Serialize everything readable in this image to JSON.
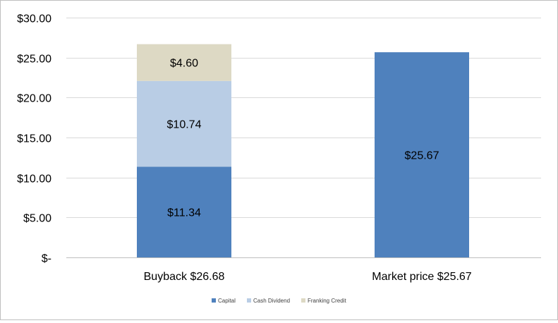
{
  "chart_data": {
    "type": "bar",
    "stacked": true,
    "categories": [
      "Buyback $26.68",
      "Market price $25.67"
    ],
    "series": [
      {
        "name": "Capital",
        "values": [
          11.34,
          25.67
        ],
        "labels": [
          "$11.34",
          "$25.67"
        ],
        "color": "#4f81bd"
      },
      {
        "name": "Cash Dividend",
        "values": [
          10.74,
          0
        ],
        "labels": [
          "$10.74",
          ""
        ],
        "color": "#b9cde5"
      },
      {
        "name": "Franking Credit",
        "values": [
          4.6,
          0
        ],
        "labels": [
          "$4.60",
          ""
        ],
        "color": "#ddd9c4"
      }
    ],
    "y_ticks": [
      0,
      5,
      10,
      15,
      20,
      25,
      30
    ],
    "y_tick_labels": [
      "$-",
      "$5.00",
      "$10.00",
      "$15.00",
      "$20.00",
      "$25.00",
      "$30.00"
    ],
    "ylim": [
      0,
      30
    ],
    "grid": true,
    "legend": "bottom-center",
    "gridline_color": "#d9d9d9",
    "axis_color": "#bfbfbf"
  }
}
